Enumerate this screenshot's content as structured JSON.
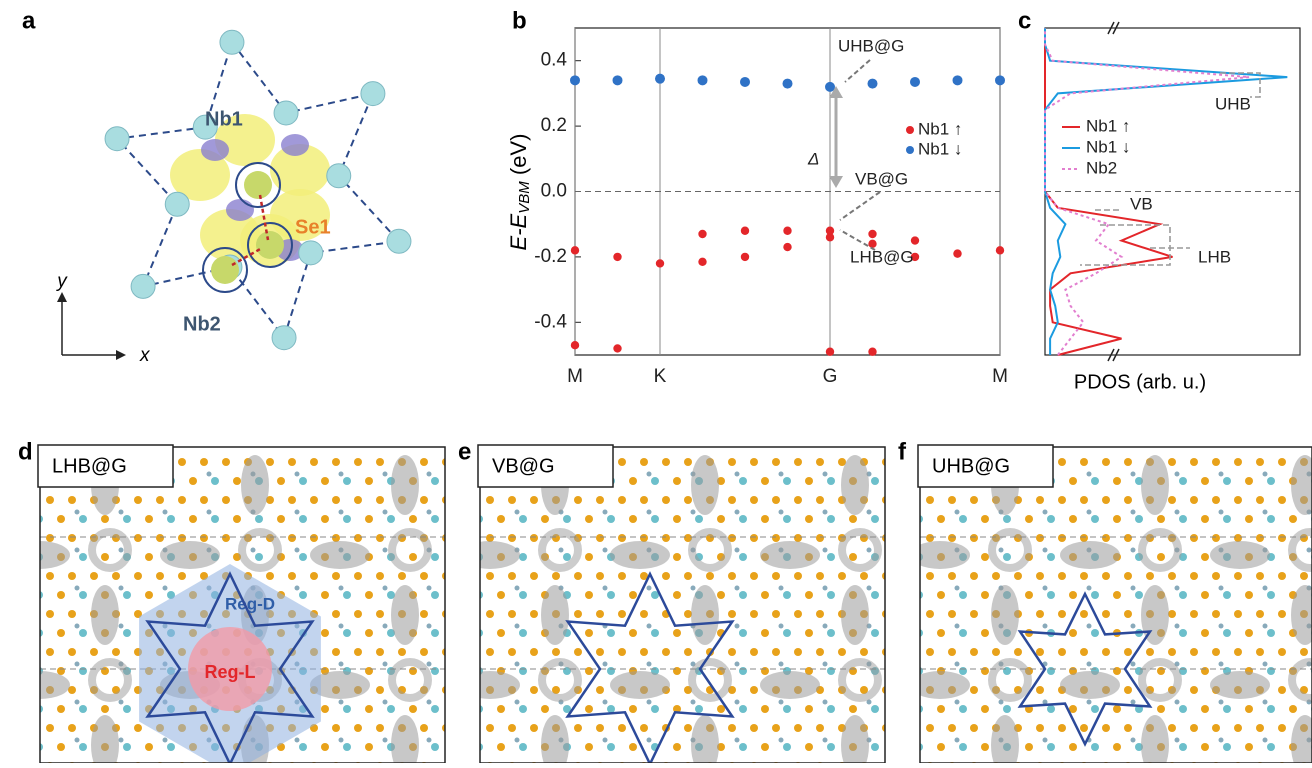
{
  "panel_labels": [
    "a",
    "b",
    "c",
    "d",
    "e",
    "f"
  ],
  "structure": {
    "labels": {
      "nb1": "Nb1",
      "se1": "Se1",
      "nb2": "Nb2"
    },
    "axes": {
      "x": "x",
      "y": "y"
    }
  },
  "chart_data": [
    {
      "type": "scatter",
      "x": [
        0,
        0.1,
        0.2,
        0.3,
        0.4,
        0.5,
        0.6,
        0.7,
        0.8,
        0.9,
        1
      ],
      "xlim": [
        0,
        1
      ],
      "xticks": [
        {
          "value": 0,
          "label": "M"
        },
        {
          "value": 0.2,
          "label": "K"
        },
        {
          "value": 0.6,
          "label": "G"
        },
        {
          "value": 1,
          "label": "M"
        }
      ],
      "ylim": [
        -0.5,
        0.5
      ],
      "yticks": [
        -0.4,
        -0.2,
        {
          "value": 0,
          "label": "0.0"
        },
        0.2,
        0.4
      ],
      "y_label": "E-E",
      "y_label_sub": "VBM",
      "y_label_unit": " (eV)",
      "hline": 0,
      "series": [
        {
          "name": "Nb1 ↑",
          "color": "#e3262a",
          "bands": [
            [
              -0.18,
              -0.2,
              -0.22,
              -0.215,
              -0.2,
              -0.17,
              -0.14,
              -0.16,
              -0.2,
              -0.19,
              -0.18
            ],
            [
              null,
              null,
              null,
              -0.13,
              -0.12,
              -0.12,
              -0.12,
              -0.13,
              -0.15,
              null,
              null
            ],
            [
              -0.47,
              -0.48,
              null,
              null,
              null,
              null,
              -0.49,
              -0.49,
              null,
              null,
              null
            ]
          ]
        },
        {
          "name": "Nb1 ↓",
          "color": "#2f72c6",
          "bands": [
            [
              0.34,
              0.34,
              0.345,
              0.34,
              0.335,
              0.33,
              0.32,
              0.33,
              0.335,
              0.34,
              0.34
            ]
          ]
        }
      ],
      "annotations": [
        "UHB@G",
        "Δ",
        "VB@G",
        "LHB@G"
      ]
    },
    {
      "type": "line",
      "orientation": "horizontal",
      "y": [
        -0.5,
        -0.45,
        -0.4,
        -0.35,
        -0.3,
        -0.25,
        -0.2,
        -0.15,
        -0.1,
        -0.05,
        0,
        0.05,
        0.1,
        0.15,
        0.2,
        0.25,
        0.3,
        0.35,
        0.4,
        0.45,
        0.5
      ],
      "ylim": [
        -0.5,
        0.5
      ],
      "xlim": [
        0,
        1
      ],
      "x_label": "PDOS (arb. u.)",
      "hline": 0,
      "series": [
        {
          "name": "Nb1 ↑",
          "color": "#e3262a",
          "dashed": false,
          "values": [
            0.05,
            0.3,
            0.03,
            0.02,
            0.02,
            0.1,
            0.5,
            0.3,
            0.45,
            0.05,
            0,
            0,
            0,
            0,
            0,
            0,
            0,
            0,
            0,
            0,
            0
          ]
        },
        {
          "name": "Nb1 ↓",
          "color": "#1b9be0",
          "dashed": false,
          "values": [
            0.02,
            0.02,
            0.05,
            0.04,
            0.02,
            0.03,
            0.06,
            0.05,
            0.08,
            0.02,
            0,
            0,
            0,
            0,
            0,
            0,
            0.05,
            0.95,
            0.02,
            0,
            0
          ]
        },
        {
          "name": "Nb2",
          "color": "#e27fcf",
          "dashed": true,
          "values": [
            0.05,
            0.1,
            0.15,
            0.1,
            0.08,
            0.2,
            0.3,
            0.2,
            0.25,
            0.05,
            0,
            0,
            0,
            0,
            0,
            0,
            0.1,
            0.8,
            0.03,
            0,
            0
          ]
        }
      ],
      "annotations": [
        {
          "text": "UHB",
          "color": "#1b9be0"
        },
        {
          "text": "VB",
          "color": "#e27fcf"
        },
        {
          "text": "LHB",
          "color": "#e3262a"
        }
      ]
    }
  ],
  "maps": [
    {
      "title": "LHB@G",
      "regions": [
        "Reg-D",
        "Reg-L"
      ]
    },
    {
      "title": "VB@G"
    },
    {
      "title": "UHB@G"
    }
  ]
}
